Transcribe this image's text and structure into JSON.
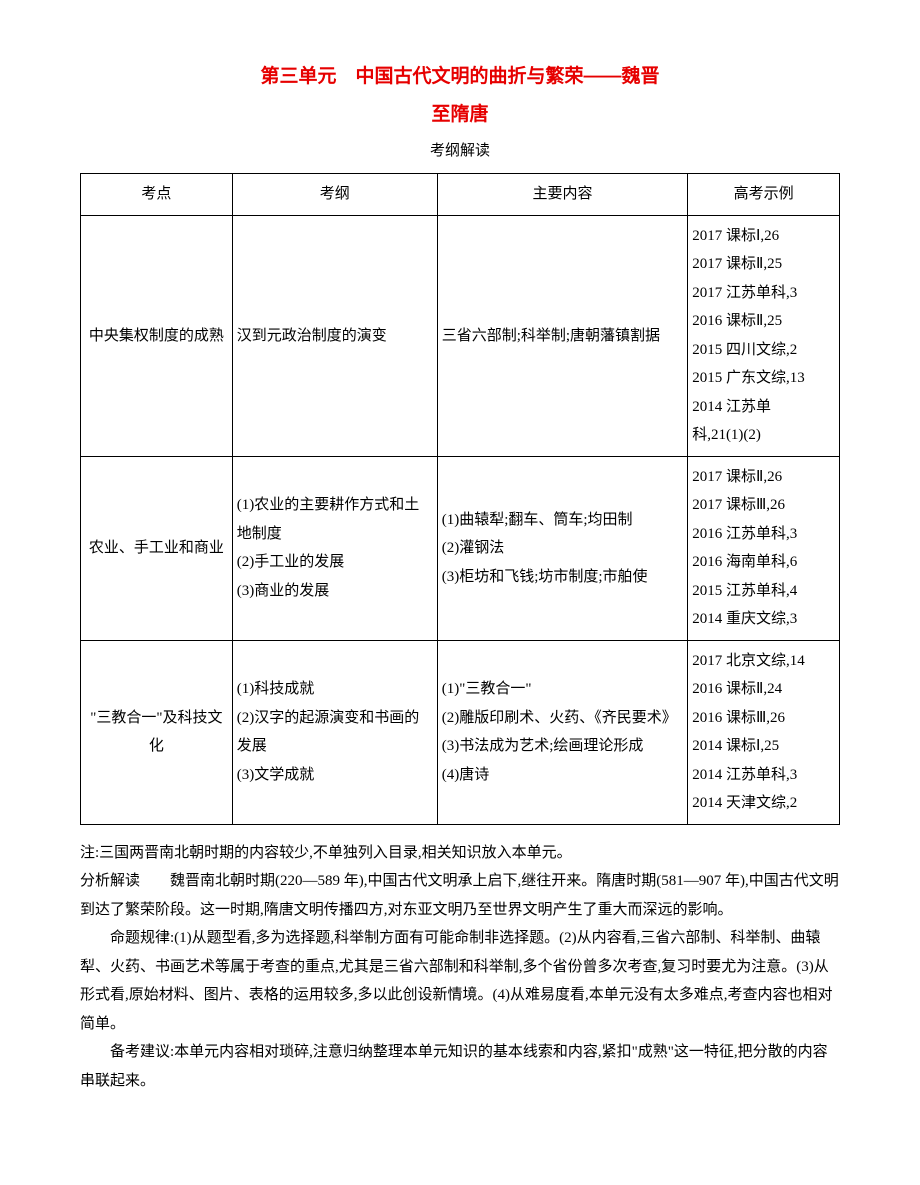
{
  "title_line1": "第三单元　中国古代文明的曲折与繁荣——魏晋",
  "title_line2": "至隋唐",
  "kgjd": "考纲解读",
  "headers": {
    "c1": "考点",
    "c2": "考纲",
    "c3": "主要内容",
    "c4": "高考示例"
  },
  "rows": [
    {
      "c1": "中央集权制度的成熟",
      "c2": "汉到元政治制度的演变",
      "c3": "三省六部制;科举制;唐朝藩镇割据",
      "c4": "2017 课标Ⅰ,26\n2017 课标Ⅱ,25\n2017 江苏单科,3\n2016 课标Ⅱ,25\n2015 四川文综,2\n2015 广东文综,13\n2014 江苏单\n科,21(1)(2)"
    },
    {
      "c1": "农业、手工业和商业",
      "c2": "(1)农业的主要耕作方式和土地制度\n(2)手工业的发展\n(3)商业的发展",
      "c3": "(1)曲辕犁;翻车、筒车;均田制\n(2)灌钢法\n(3)柜坊和飞钱;坊市制度;市舶使",
      "c4": "2017 课标Ⅱ,26\n2017 课标Ⅲ,26\n2016 江苏单科,3\n2016 海南单科,6\n2015 江苏单科,4\n2014 重庆文综,3"
    },
    {
      "c1": "\"三教合一\"及科技文化",
      "c2": "(1)科技成就\n(2)汉字的起源演变和书画的发展\n(3)文学成就",
      "c3": "(1)\"三教合一\"\n(2)雕版印刷术、火药、《齐民要术》\n(3)书法成为艺术;绘画理论形成\n(4)唐诗",
      "c4": "2017 北京文综,14\n2016 课标Ⅱ,24\n2016 课标Ⅲ,26\n2014 课标Ⅰ,25\n2014 江苏单科,3\n2014 天津文综,2"
    }
  ],
  "note": "注:三国两晋南北朝时期的内容较少,不单独列入目录,相关知识放入本单元。",
  "p1": "分析解读　　魏晋南北朝时期(220—589 年),中国古代文明承上启下,继往开来。隋唐时期(581—907 年),中国古代文明到达了繁荣阶段。这一时期,隋唐文明传播四方,对东亚文明乃至世界文明产生了重大而深远的影响。",
  "p2": "命题规律:(1)从题型看,多为选择题,科举制方面有可能命制非选择题。(2)从内容看,三省六部制、科举制、曲辕犁、火药、书画艺术等属于考查的重点,尤其是三省六部制和科举制,多个省份曾多次考查,复习时要尤为注意。(3)从形式看,原始材料、图片、表格的运用较多,多以此创设新情境。(4)从难易度看,本单元没有太多难点,考查内容也相对简单。",
  "p3": "备考建议:本单元内容相对琐碎,注意归纳整理本单元知识的基本线索和内容,紧扣\"成熟\"这一特征,把分散的内容串联起来。"
}
